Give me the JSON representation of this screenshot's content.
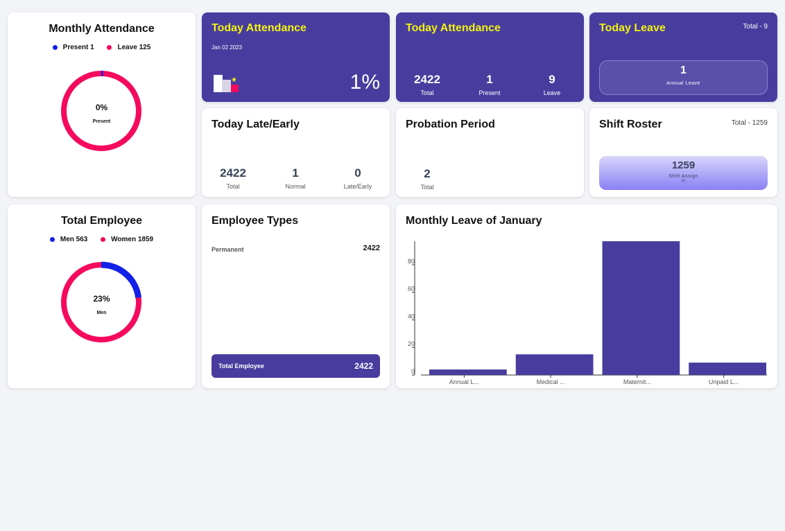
{
  "monthly_attendance": {
    "title": "Monthly Attendance",
    "legend": [
      {
        "label": "Present 1",
        "color": "#1320e8"
      },
      {
        "label": "Leave 125",
        "color": "#f50a5e"
      }
    ],
    "percent": "0%",
    "center_label": "Present",
    "fraction": 0.008
  },
  "today_attendance_1": {
    "title": "Today Attendance",
    "date": "Jan 02 2023",
    "percent": "1%"
  },
  "today_attendance_2": {
    "title": "Today Attendance",
    "stats": [
      {
        "value": "2422",
        "label": "Total"
      },
      {
        "value": "1",
        "label": "Present"
      },
      {
        "value": "9",
        "label": "Leave"
      }
    ]
  },
  "today_leave": {
    "title": "Today Leave",
    "total": "Total - 9",
    "box_value": "1",
    "box_label": "Annual Leave"
  },
  "late_early": {
    "title": "Today Late/Early",
    "stats": [
      {
        "value": "2422",
        "label": "Total"
      },
      {
        "value": "1",
        "label": "Normal"
      },
      {
        "value": "0",
        "label": "Late/Early"
      }
    ]
  },
  "probation": {
    "title": "Probation Period",
    "value": "2",
    "label": "Total"
  },
  "shift_roster": {
    "title": "Shift Roster",
    "total": "Total - 1259",
    "box_value": "1259",
    "box_label": "Shift Assign",
    "box_sub": "(1)"
  },
  "total_employee": {
    "title": "Total Employee",
    "legend": [
      {
        "label": "Men 563",
        "color": "#1320e8"
      },
      {
        "label": "Women 1859",
        "color": "#f50a5e"
      }
    ],
    "percent": "23%",
    "center_label": "Men",
    "fraction": 0.23
  },
  "employee_types": {
    "title": "Employee Types",
    "rows": [
      {
        "label": "Permanent",
        "value": "2422"
      }
    ],
    "footer_label": "Total Employee",
    "footer_value": "2422"
  },
  "monthly_leave": {
    "title": "Monthly Leave of January"
  },
  "chart_data": {
    "type": "bar",
    "title": "Monthly Leave of January",
    "categories": [
      "Annual L...",
      "Medical ...",
      "Maternit...",
      "Unpaid L..."
    ],
    "values": [
      4,
      15,
      97,
      9
    ],
    "ylim": [
      0,
      97
    ],
    "yticks": [
      0,
      20,
      40,
      60,
      80
    ],
    "color": "#483d9e"
  }
}
